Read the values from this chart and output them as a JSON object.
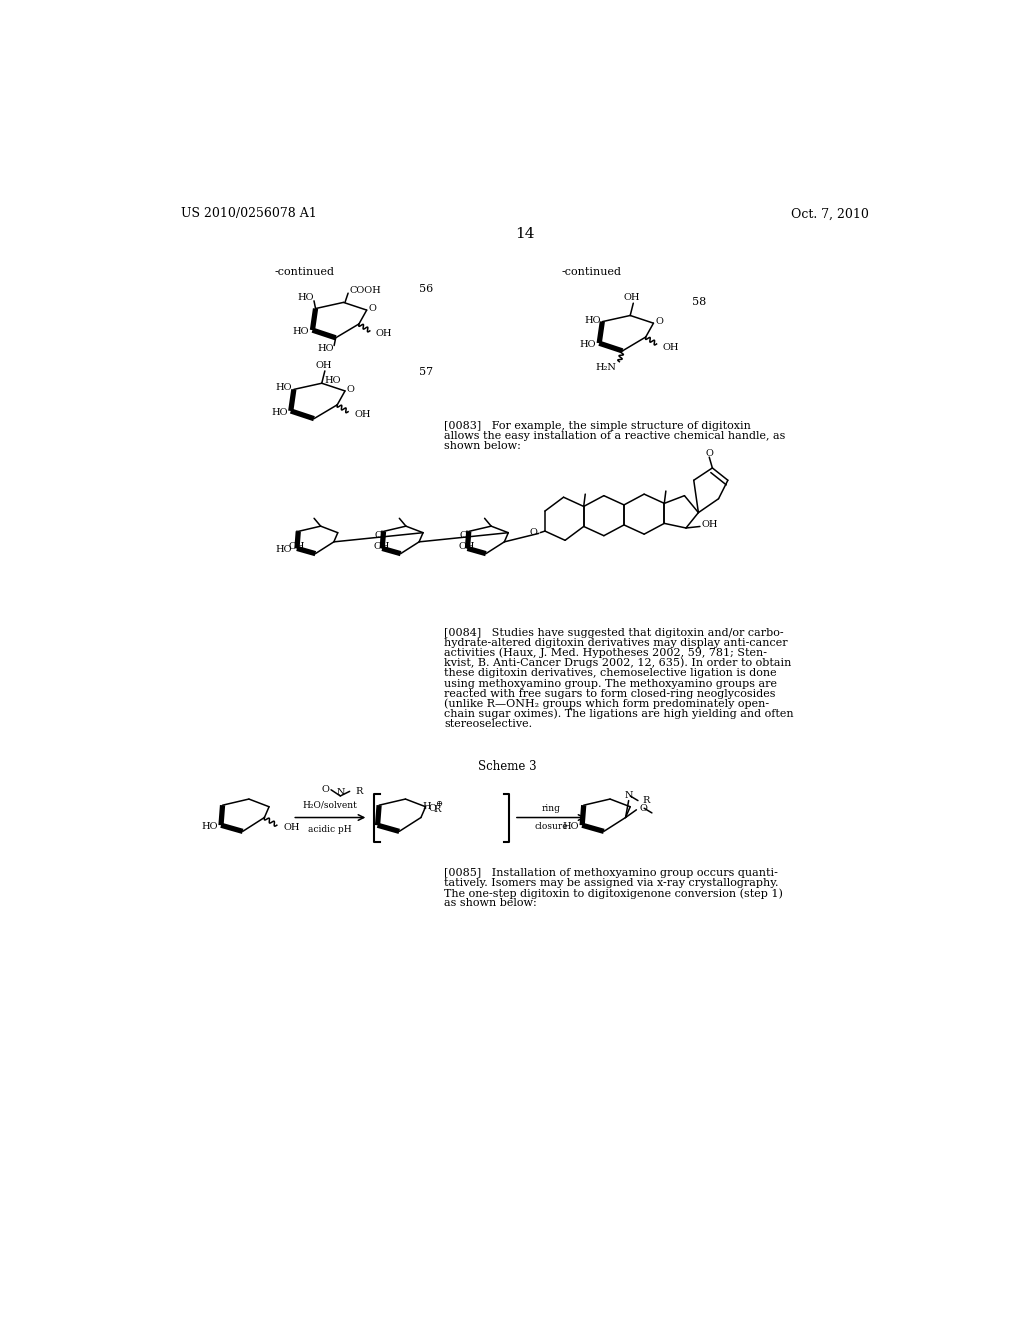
{
  "background_color": "#ffffff",
  "page_number": "14",
  "header_left": "US 2010/0256078 A1",
  "header_right": "Oct. 7, 2010",
  "continued_left": "-continued",
  "continued_right": "-continued",
  "compound_56": "56",
  "compound_57": "57",
  "compound_58": "58",
  "paragraph_0083_lines": [
    "[0083]   For example, the simple structure of digitoxin",
    "allows the easy installation of a reactive chemical handle, as",
    "shown below:"
  ],
  "paragraph_0084_lines": [
    "[0084]   Studies have suggested that digitoxin and/or carbo-",
    "hydrate-altered digitoxin derivatives may display anti-cancer",
    "activities (Haux, J. Med. Hypotheses 2002, 59, 781; Sten-",
    "kvist, B. Anti-Cancer Drugs 2002, 12, 635). In order to obtain",
    "these digitoxin derivatives, chemoselective ligation is done",
    "using methoxyamino group. The methoxyamino groups are",
    "reacted with free sugars to form closed-ring neoglycosides",
    "(unlike R—ONH₂ groups which form predominately open-",
    "chain sugar oximes). The ligations are high yielding and often",
    "stereoselective."
  ],
  "scheme_label": "Scheme 3",
  "paragraph_0085_lines": [
    "[0085]   Installation of methoxyamino group occurs quanti-",
    "tatively. Isomers may be assigned via x-ray crystallography.",
    "The one-step digitoxin to digitoxigenone conversion (step 1)",
    "as shown below:"
  ],
  "font_size_header": 9,
  "font_size_page": 11,
  "font_size_body": 8.0,
  "font_size_compound": 8,
  "font_size_continued": 8,
  "font_size_label": 7
}
